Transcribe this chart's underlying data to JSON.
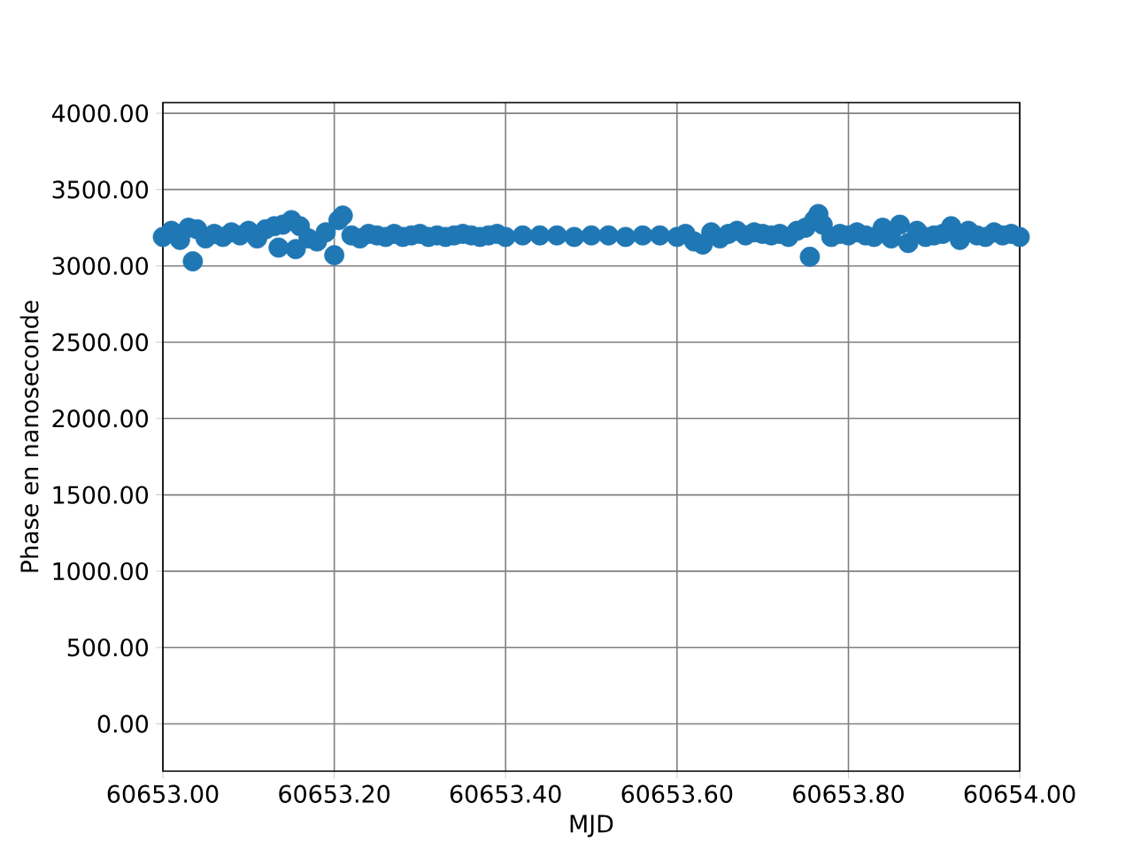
{
  "chart_data": {
    "type": "scatter",
    "xlabel": "MJD",
    "ylabel": "Phase en nanoseconde",
    "x": [
      60653.0,
      60653.01,
      60653.02,
      60653.03,
      60653.035,
      60653.04,
      60653.05,
      60653.06,
      60653.07,
      60653.08,
      60653.09,
      60653.1,
      60653.11,
      60653.12,
      60653.13,
      60653.135,
      60653.14,
      60653.15,
      60653.155,
      60653.16,
      60653.17,
      60653.18,
      60653.19,
      60653.2,
      60653.205,
      60653.21,
      60653.22,
      60653.23,
      60653.24,
      60653.25,
      60653.26,
      60653.27,
      60653.28,
      60653.29,
      60653.3,
      60653.31,
      60653.32,
      60653.33,
      60653.34,
      60653.35,
      60653.36,
      60653.37,
      60653.38,
      60653.39,
      60653.4,
      60653.42,
      60653.44,
      60653.46,
      60653.48,
      60653.5,
      60653.52,
      60653.54,
      60653.56,
      60653.58,
      60653.6,
      60653.61,
      60653.62,
      60653.63,
      60653.64,
      60653.65,
      60653.66,
      60653.67,
      60653.68,
      60653.69,
      60653.7,
      60653.71,
      60653.72,
      60653.73,
      60653.74,
      60653.75,
      60653.755,
      60653.76,
      60653.765,
      60653.77,
      60653.78,
      60653.79,
      60653.8,
      60653.81,
      60653.82,
      60653.83,
      60653.84,
      60653.85,
      60653.86,
      60653.87,
      60653.88,
      60653.89,
      60653.9,
      60653.91,
      60653.92,
      60653.93,
      60653.94,
      60653.95,
      60653.96,
      60653.97,
      60653.98,
      60653.99,
      60654.0
    ],
    "values": [
      3190,
      3230,
      3170,
      3250,
      3030,
      3240,
      3180,
      3210,
      3190,
      3220,
      3200,
      3230,
      3180,
      3240,
      3260,
      3120,
      3270,
      3300,
      3110,
      3260,
      3180,
      3160,
      3220,
      3070,
      3300,
      3330,
      3200,
      3180,
      3210,
      3200,
      3190,
      3210,
      3190,
      3200,
      3210,
      3190,
      3200,
      3190,
      3200,
      3210,
      3200,
      3190,
      3200,
      3210,
      3190,
      3200,
      3200,
      3200,
      3190,
      3200,
      3200,
      3190,
      3200,
      3200,
      3190,
      3210,
      3160,
      3140,
      3220,
      3180,
      3210,
      3230,
      3200,
      3220,
      3210,
      3200,
      3210,
      3190,
      3230,
      3250,
      3060,
      3300,
      3340,
      3270,
      3190,
      3210,
      3200,
      3220,
      3200,
      3190,
      3250,
      3180,
      3270,
      3150,
      3230,
      3190,
      3200,
      3210,
      3260,
      3170,
      3230,
      3200,
      3190,
      3220,
      3200,
      3210,
      3190
    ],
    "color": "#1f77b4",
    "marker": "circle",
    "grid": true,
    "xlim": [
      60653.0,
      60654.0
    ],
    "ylim": [
      -310,
      4070
    ],
    "xticks": [
      {
        "value": 60653.0,
        "label": "60653.00"
      },
      {
        "value": 60653.2,
        "label": "60653.20"
      },
      {
        "value": 60653.4,
        "label": "60653.40"
      },
      {
        "value": 60653.6,
        "label": "60653.60"
      },
      {
        "value": 60653.8,
        "label": "60653.80"
      },
      {
        "value": 60654.0,
        "label": "60654.00"
      }
    ],
    "yticks": [
      {
        "value": 0,
        "label": "0.00"
      },
      {
        "value": 500,
        "label": "500.00"
      },
      {
        "value": 1000,
        "label": "1000.00"
      },
      {
        "value": 1500,
        "label": "1500.00"
      },
      {
        "value": 2000,
        "label": "2000.00"
      },
      {
        "value": 2500,
        "label": "2500.00"
      },
      {
        "value": 3000,
        "label": "3000.00"
      },
      {
        "value": 3500,
        "label": "3500.00"
      },
      {
        "value": 4000,
        "label": "4000.00"
      }
    ]
  }
}
